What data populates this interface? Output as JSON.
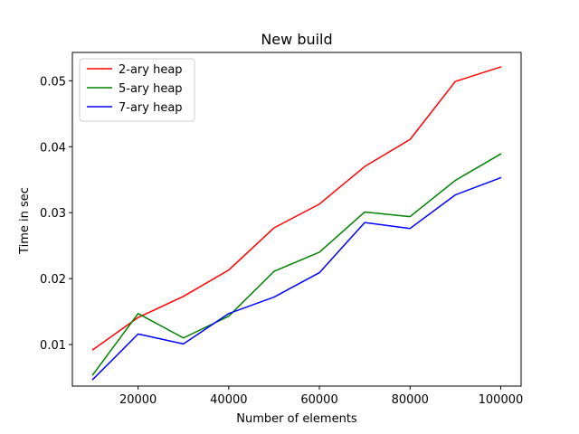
{
  "chart_data": {
    "type": "line",
    "title": "New build",
    "xlabel": "Number of elements",
    "ylabel": "Time in sec",
    "x": [
      10000,
      20000,
      30000,
      40000,
      50000,
      60000,
      70000,
      80000,
      90000,
      100000
    ],
    "xlim": [
      5500,
      104500
    ],
    "ylim": [
      0.0037,
      0.0543
    ],
    "xticks": [
      20000,
      40000,
      60000,
      80000,
      100000
    ],
    "xtick_labels": [
      "20000",
      "40000",
      "60000",
      "80000",
      "100000"
    ],
    "yticks": [
      0.01,
      0.02,
      0.03,
      0.04,
      0.05
    ],
    "ytick_labels": [
      "0.01",
      "0.02",
      "0.03",
      "0.04",
      "0.05"
    ],
    "grid": false,
    "legend_position": "top-left",
    "series": [
      {
        "name": "2-ary heap",
        "color": "#ff0000",
        "values": [
          0.0092,
          0.0141,
          0.0173,
          0.0213,
          0.0277,
          0.0313,
          0.037,
          0.0411,
          0.0499,
          0.0521
        ]
      },
      {
        "name": "5-ary heap",
        "color": "#008000",
        "values": [
          0.0054,
          0.0147,
          0.011,
          0.0143,
          0.0211,
          0.024,
          0.0301,
          0.0294,
          0.0349,
          0.0389
        ]
      },
      {
        "name": "7-ary heap",
        "color": "#0000ff",
        "values": [
          0.0047,
          0.0116,
          0.0101,
          0.0147,
          0.0172,
          0.0209,
          0.0285,
          0.0276,
          0.0327,
          0.0353
        ]
      }
    ]
  }
}
